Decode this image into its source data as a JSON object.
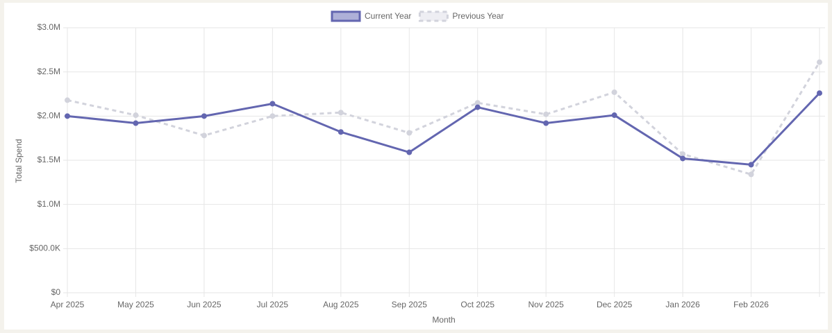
{
  "chart_data": {
    "type": "line",
    "x_label": "Month",
    "y_label": "Total Spend",
    "categories": [
      "Apr 2025",
      "May 2025",
      "Jun 2025",
      "Jul 2025",
      "Aug 2025",
      "Sep 2025",
      "Oct 2025",
      "Nov 2025",
      "Dec 2025",
      "Jan 2026",
      "Feb 2026",
      null
    ],
    "series": [
      {
        "name": "Current Year",
        "color": "#6366b0",
        "dashed": false,
        "values": [
          2000000,
          1920000,
          2000000,
          2140000,
          1820000,
          1590000,
          2100000,
          1920000,
          2010000,
          1520000,
          1450000,
          2260000
        ]
      },
      {
        "name": "Previous Year",
        "color": "#d2d3dc",
        "dashed": true,
        "values": [
          2180000,
          2010000,
          1780000,
          2000000,
          2040000,
          1810000,
          2150000,
          2020000,
          2270000,
          1570000,
          1340000,
          2610000
        ]
      }
    ],
    "ylim": [
      0,
      3000000
    ],
    "yticks": [
      {
        "value": 0,
        "label": "$0"
      },
      {
        "value": 500000,
        "label": "$500.0K"
      },
      {
        "value": 1000000,
        "label": "$1.0M"
      },
      {
        "value": 1500000,
        "label": "$1.5M"
      },
      {
        "value": 2000000,
        "label": "$2.0M"
      },
      {
        "value": 2500000,
        "label": "$2.5M"
      },
      {
        "value": 3000000,
        "label": "$3.0M"
      }
    ],
    "grid": true,
    "legend": "top"
  }
}
